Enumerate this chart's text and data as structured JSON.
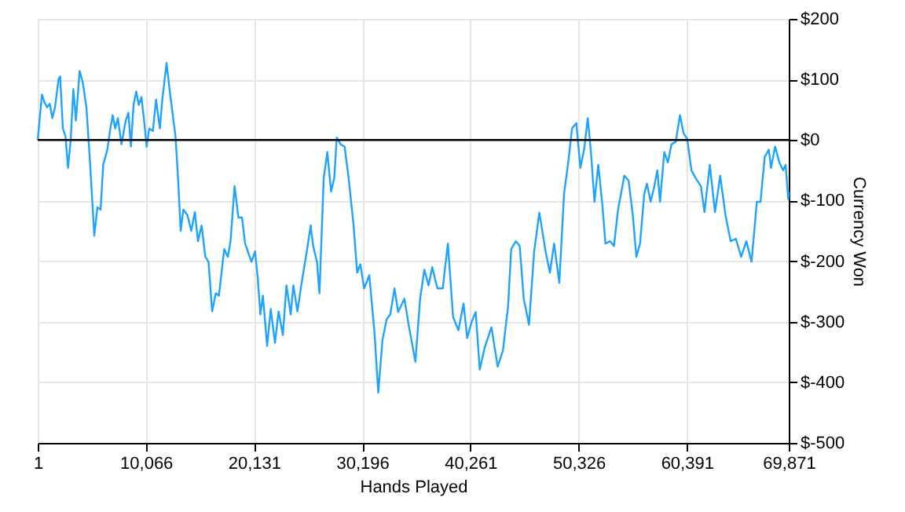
{
  "chart_data": {
    "type": "line",
    "xlabel": "Hands Played",
    "ylabel": "Currency Won",
    "xlim": [
      1,
      69871
    ],
    "ylim": [
      -500,
      200
    ],
    "xticks": [
      1,
      {
        "value": 10066,
        "label": "10,066"
      },
      {
        "value": 20131,
        "label": "20,131"
      },
      {
        "value": 30196,
        "label": "30,196"
      },
      {
        "value": 40261,
        "label": "40,261"
      },
      {
        "value": 50326,
        "label": "50,326"
      },
      {
        "value": 60391,
        "label": "60,391"
      },
      {
        "value": 69871,
        "label": "69,871"
      }
    ],
    "yticks": [
      {
        "value": 200,
        "label": "$200"
      },
      {
        "value": 100,
        "label": "$100"
      },
      {
        "value": 0,
        "label": "$0"
      },
      {
        "value": -100,
        "label": "$-100"
      },
      {
        "value": -200,
        "label": "$-200"
      },
      {
        "value": -300,
        "label": "$-300"
      },
      {
        "value": -400,
        "label": "$-400"
      },
      {
        "value": -500,
        "label": "$-500"
      }
    ],
    "grid": true,
    "marker": "none",
    "line_style": "solid",
    "ref_lines": [
      {
        "axis": "y",
        "value": 0,
        "color": "#000000",
        "line_style": "solid"
      }
    ],
    "series": [
      {
        "color": "#1fa3ff",
        "x": [
          1,
          396,
          630,
          878,
          1127,
          1361,
          1609,
          1945,
          2092,
          2340,
          2588,
          2822,
          3071,
          3319,
          3553,
          3904,
          4196,
          4533,
          4869,
          5264,
          5556,
          5849,
          6098,
          6478,
          6726,
          6975,
          7209,
          7457,
          7794,
          8188,
          8437,
          8671,
          8919,
          9168,
          9402,
          9650,
          9899,
          10133,
          10381,
          10718,
          11010,
          11361,
          11595,
          11989,
          12326,
          12822,
          13056,
          13305,
          13553,
          13933,
          14284,
          14621,
          14913,
          15250,
          15600,
          15893,
          16230,
          16566,
          16858,
          17355,
          17691,
          17939,
          18319,
          18670,
          19006,
          19298,
          19883,
          20220,
          20468,
          20716,
          20951,
          21346,
          21682,
          22076,
          22413,
          22808,
          23144,
          23539,
          23787,
          24167,
          24518,
          25001,
          25395,
          25629,
          25980,
          26214,
          26608,
          26945,
          27296,
          27588,
          27822,
          28173,
          28553,
          28904,
          29388,
          29724,
          30017,
          30368,
          30850,
          31333,
          31683,
          32069,
          32464,
          32800,
          33195,
          33531,
          34116,
          34510,
          35139,
          35578,
          35972,
          36367,
          36703,
          37186,
          37682,
          38160,
          38643,
          39139,
          39622,
          39958,
          40353,
          40748,
          41127,
          41566,
          42211,
          42795,
          43278,
          43760,
          44053,
          44491,
          44842,
          45222,
          45705,
          46187,
          46670,
          47254,
          47649,
          48043,
          48528,
          48967,
          49361,
          49712,
          50107,
          50487,
          50838,
          51179,
          51471,
          51800,
          52150,
          52530,
          52822,
          53260,
          53612,
          53991,
          54577,
          54971,
          55366,
          55700,
          56036,
          56430,
          56680,
          57020,
          57313,
          57649,
          57898,
          58292,
          58626,
          58963,
          59357,
          59752,
          60088,
          60425,
          60819,
          61214,
          61696,
          62033,
          62529,
          63010,
          63493,
          63989,
          64469,
          64951,
          65447,
          65929,
          66411,
          66907,
          67244,
          67639,
          68020,
          68224,
          68605,
          69000,
          69337,
          69580,
          69831,
          69871
        ],
        "values": [
          0,
          75,
          62,
          54,
          60,
          36,
          54,
          101,
          105,
          19,
          6,
          -46,
          0,
          84,
          32,
          114,
          95,
          54,
          -37,
          -158,
          -111,
          -115,
          -41,
          -16,
          15,
          41,
          19,
          36,
          -7,
          32,
          45,
          -11,
          58,
          80,
          58,
          71,
          32,
          -11,
          19,
          15,
          67,
          19,
          67,
          127,
          75,
          6,
          -63,
          -150,
          -115,
          -124,
          -150,
          -119,
          -167,
          -141,
          -193,
          -201,
          -283,
          -253,
          -257,
          -180,
          -193,
          -167,
          -76,
          -128,
          -128,
          -171,
          -201,
          -184,
          -227,
          -288,
          -257,
          -340,
          -279,
          -335,
          -283,
          -322,
          -240,
          -288,
          -240,
          -283,
          -240,
          -188,
          -141,
          -175,
          -201,
          -253,
          -63,
          -20,
          -85,
          -63,
          4,
          -7,
          -11,
          -59,
          -141,
          -219,
          -205,
          -245,
          -223,
          -318,
          -417,
          -331,
          -296,
          -288,
          -245,
          -284,
          -262,
          -305,
          -366,
          -262,
          -214,
          -240,
          -210,
          -245,
          -245,
          -171,
          -292,
          -314,
          -270,
          -327,
          -301,
          -284,
          -379,
          -344,
          -309,
          -374,
          -348,
          -275,
          -180,
          -167,
          -175,
          -262,
          -305,
          -184,
          -120,
          -184,
          -219,
          -171,
          -236,
          -89,
          -37,
          19,
          28,
          -46,
          -15,
          36,
          -20,
          -102,
          -41,
          -106,
          -171,
          -167,
          -175,
          -115,
          -59,
          -67,
          -124,
          -193,
          -171,
          -89,
          -72,
          -102,
          -81,
          -50,
          -102,
          -20,
          -37,
          -7,
          -3,
          41,
          11,
          2,
          -50,
          -63,
          -76,
          -119,
          -41,
          -119,
          -59,
          -124,
          -167,
          -163,
          -193,
          -167,
          -201,
          -102,
          -102,
          -28,
          -16,
          -46,
          -11,
          -37,
          -50,
          -41,
          -98,
          -85
        ]
      }
    ]
  }
}
